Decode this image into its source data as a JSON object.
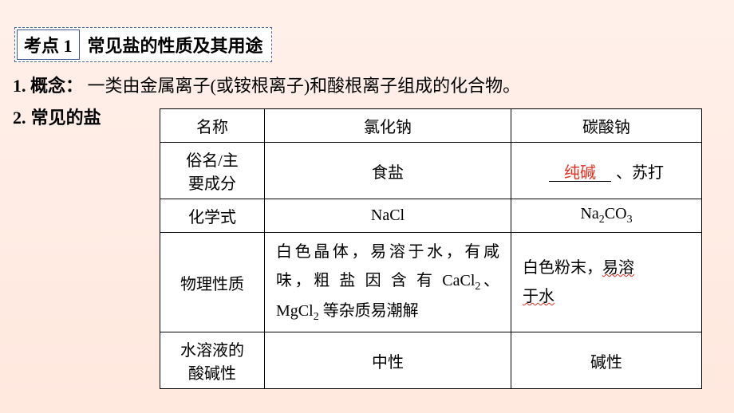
{
  "topic": {
    "badge": "考点 1",
    "title": "常见盐的性质及其用途"
  },
  "line1": {
    "num": "1.",
    "label": "概念：",
    "text": "一类由金属离子(或铵根离子)和酸根离子组成的化合物。"
  },
  "line2": {
    "num": "2.",
    "label": "常见的盐"
  },
  "table": {
    "header": {
      "name": "名称",
      "a": "氯化钠",
      "b": "碳酸钠"
    },
    "r1": {
      "h1": "俗名/主",
      "h2": "要成分",
      "a": "食盐",
      "b_blank": "纯碱",
      "b_rest": "、苏打"
    },
    "r2": {
      "h": "化学式",
      "a_html": "NaCl",
      "b_pre": "Na",
      "b_sub1": "2",
      "b_mid": "CO",
      "b_sub2": "3"
    },
    "r3": {
      "h": "物理性质",
      "a_p1": "白色晶体，易溶于水，有咸",
      "a_p2a": "味，粗 盐 因 含 有 CaCl",
      "a_p2sub": "2",
      "a_p2b": "、",
      "a_p3a": "MgCl",
      "a_p3sub": "2",
      "a_p3b": " 等杂质易潮解",
      "b_p1a": "白色粉末，",
      "b_p1b": "易溶",
      "b_p2": "于水"
    },
    "r4": {
      "h1": "水溶液的",
      "h2": "酸碱性",
      "a": "中性",
      "b": "碱性"
    }
  }
}
